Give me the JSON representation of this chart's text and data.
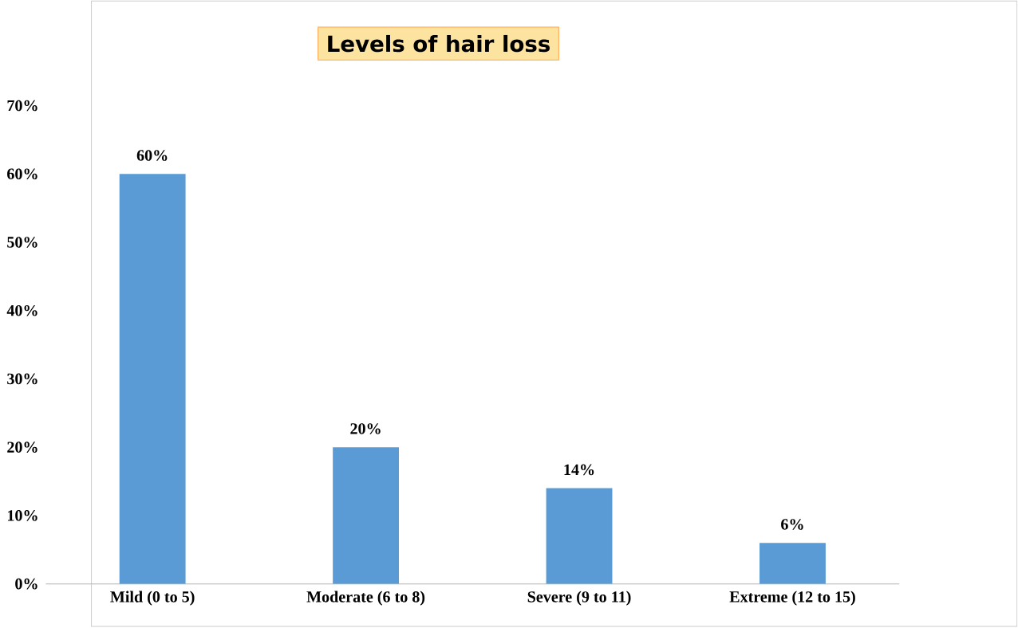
{
  "chart_data": {
    "type": "bar",
    "title": "Levels of hair loss",
    "categories": [
      "Mild (0 to 5)",
      "Moderate (6 to 8)",
      "Severe (9 to 11)",
      "Extreme (12 to 15)"
    ],
    "values": [
      60,
      20,
      14,
      6
    ],
    "value_labels": [
      "60%",
      "20%",
      "14%",
      "6%"
    ],
    "color": "#5b9bd5",
    "ylim": [
      0,
      70
    ],
    "yticks": [
      {
        "value": 0,
        "label": "0%"
      },
      {
        "value": 10,
        "label": "10%"
      },
      {
        "value": 20,
        "label": "20%"
      },
      {
        "value": 30,
        "label": "30%"
      },
      {
        "value": 40,
        "label": "40%"
      },
      {
        "value": 50,
        "label": "50%"
      },
      {
        "value": 60,
        "label": "60%"
      },
      {
        "value": 70,
        "label": "70%"
      }
    ]
  }
}
